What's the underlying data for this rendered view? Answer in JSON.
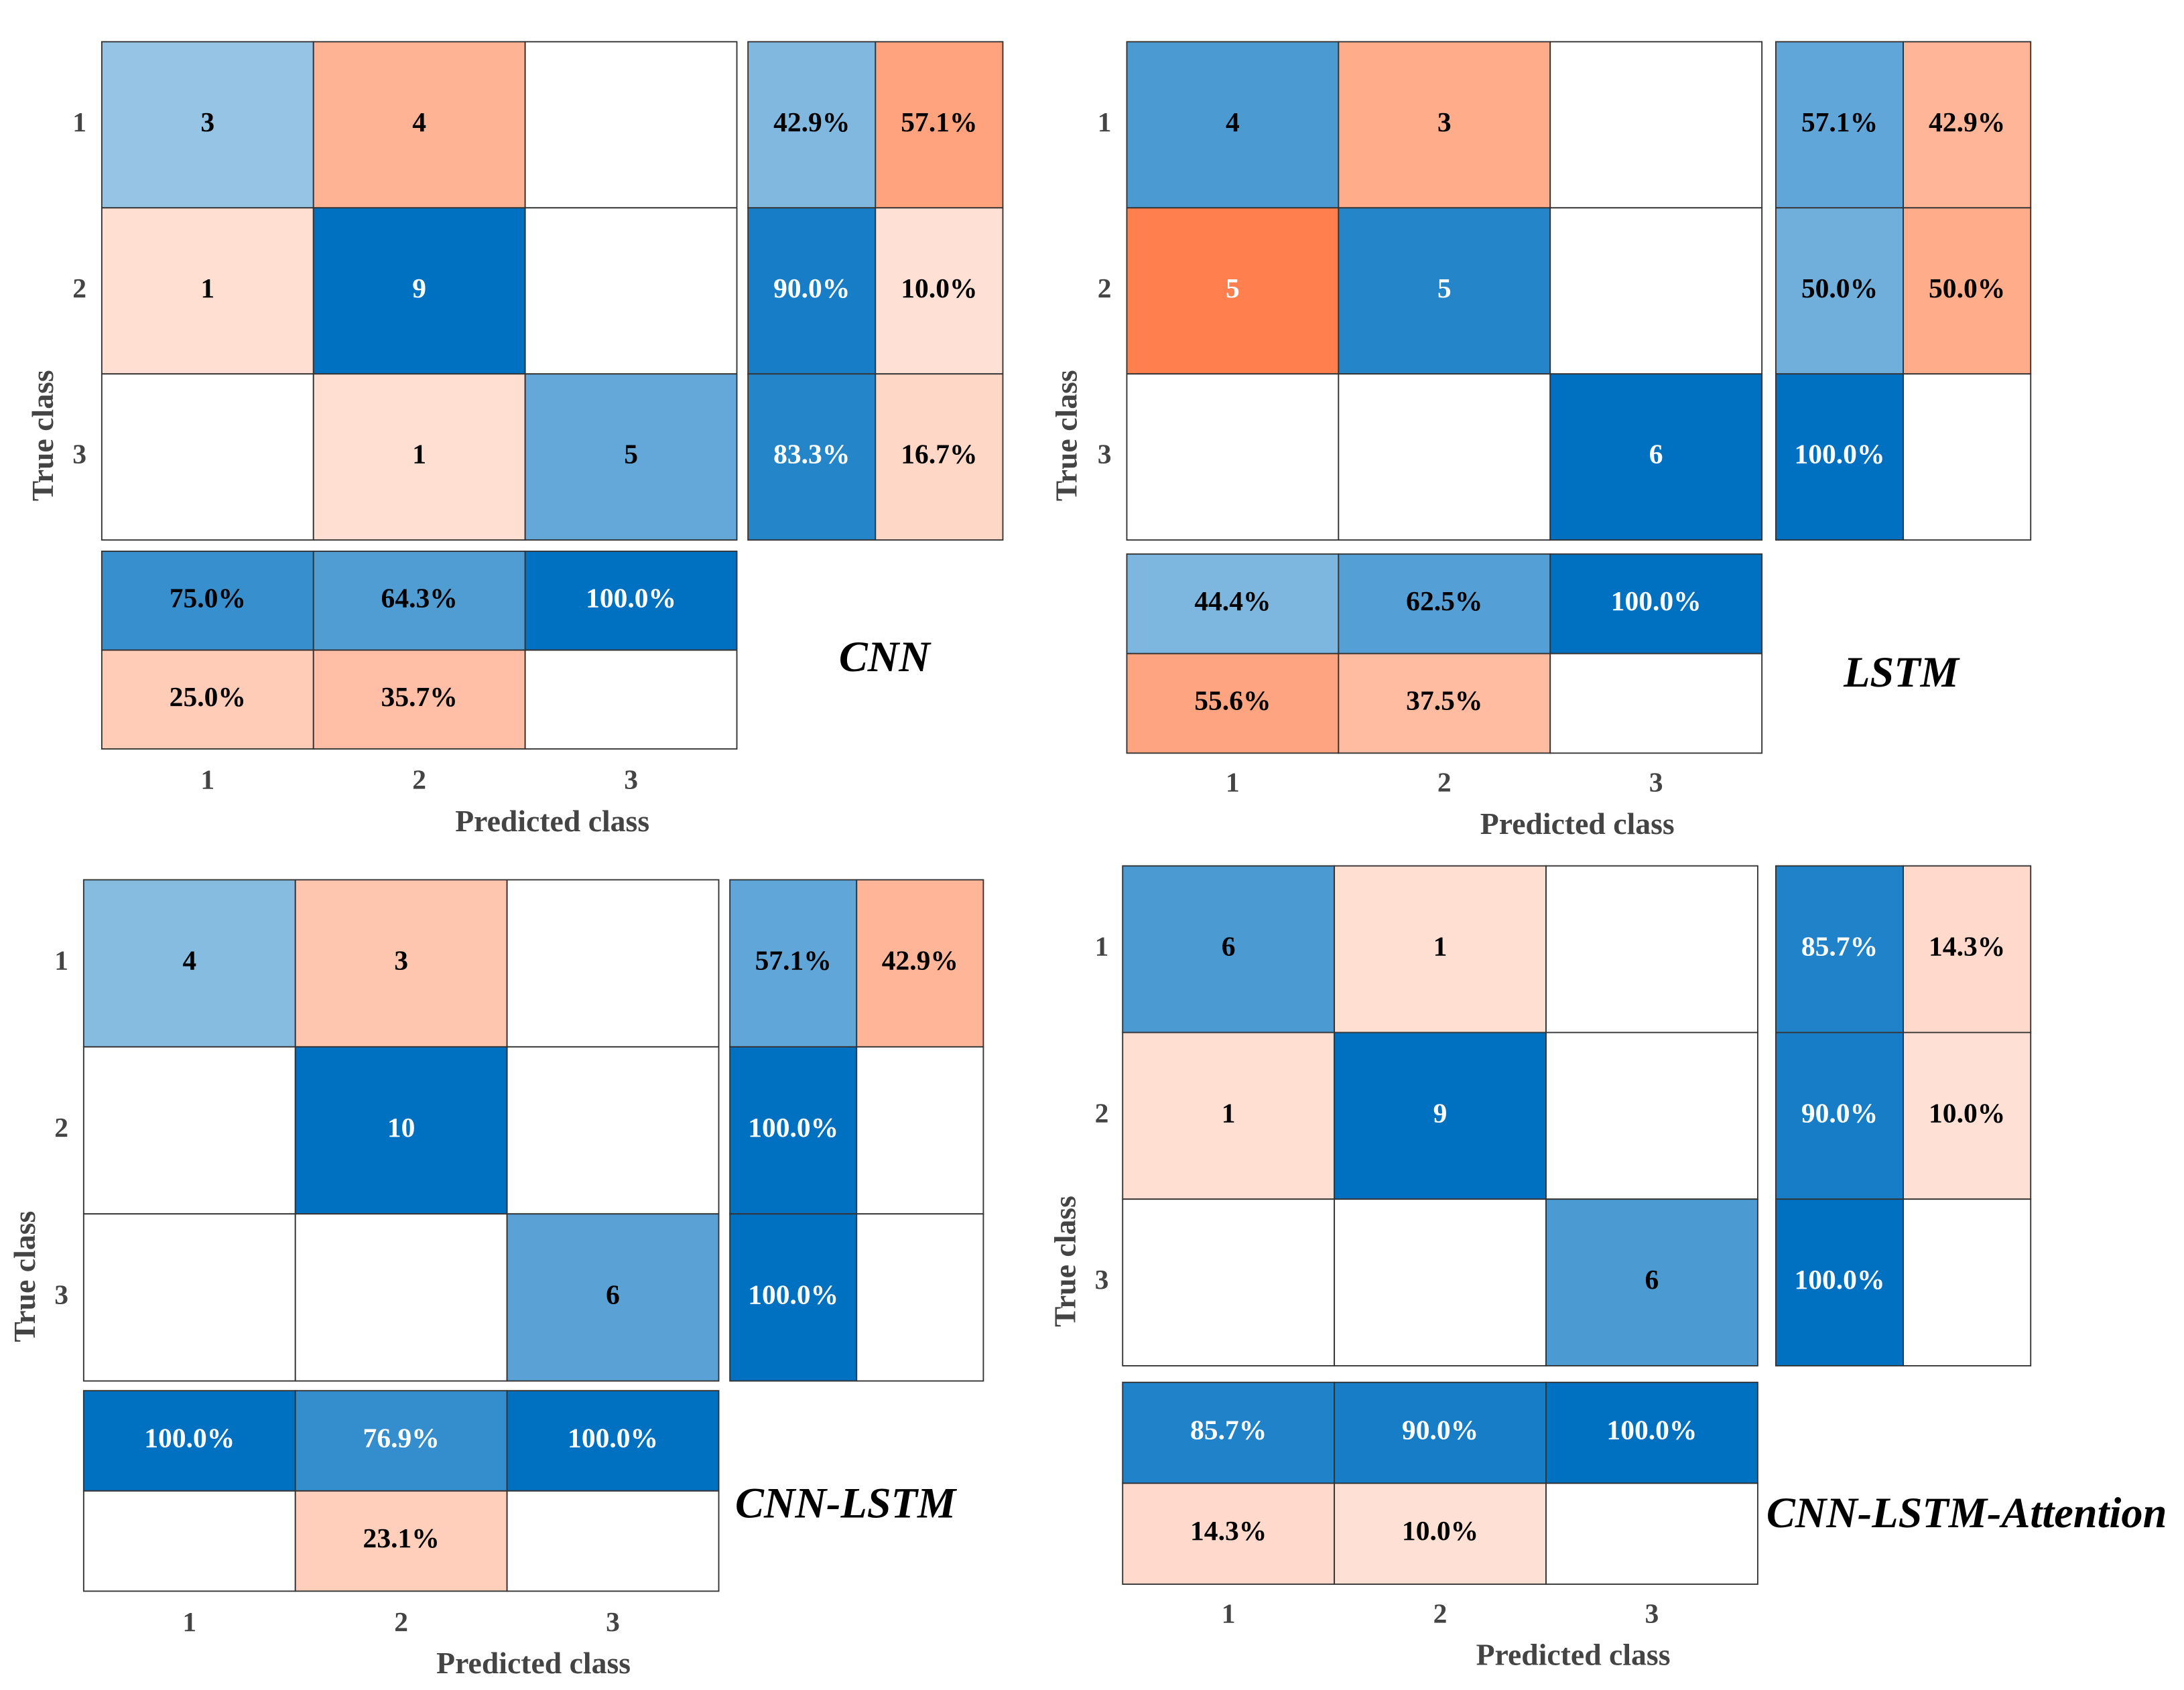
{
  "chart_data": [
    {
      "type": "confusion_matrix",
      "title": "CNN",
      "xlabel": "Predicted class",
      "ylabel": "True class",
      "classes": [
        "1",
        "2",
        "3"
      ],
      "matrix": [
        [
          3,
          4,
          null
        ],
        [
          1,
          9,
          null
        ],
        [
          null,
          1,
          5
        ]
      ],
      "row_summary": {
        "values": [
          [
            42.9,
            57.1
          ],
          [
            90.0,
            10.0
          ],
          [
            83.3,
            16.7
          ]
        ],
        "value_labels": [
          [
            "42.9%",
            "57.1%"
          ],
          [
            "90.0%",
            "10.0%"
          ],
          [
            "83.3%",
            "16.7%"
          ]
        ]
      },
      "column_summary": {
        "values": [
          [
            75.0,
            64.3,
            100.0
          ],
          [
            25.0,
            35.7,
            null
          ]
        ],
        "value_labels": [
          [
            "75.0%",
            "64.3%",
            "100.0%"
          ],
          [
            "25.0%",
            "35.7%",
            null
          ]
        ]
      },
      "correct_color": "#0070c0",
      "incorrect_color": "#ff6a2f"
    },
    {
      "type": "confusion_matrix",
      "title": "LSTM",
      "xlabel": "Predicted class",
      "ylabel": "True class",
      "classes": [
        "1",
        "2",
        "3"
      ],
      "matrix": [
        [
          4,
          3,
          null
        ],
        [
          5,
          5,
          null
        ],
        [
          null,
          null,
          6
        ]
      ],
      "row_summary": {
        "values": [
          [
            57.1,
            42.9
          ],
          [
            50.0,
            50.0
          ],
          [
            100.0,
            null
          ]
        ],
        "value_labels": [
          [
            "57.1%",
            "42.9%"
          ],
          [
            "50.0%",
            "50.0%"
          ],
          [
            "100.0%",
            null
          ]
        ]
      },
      "column_summary": {
        "values": [
          [
            44.4,
            62.5,
            100.0
          ],
          [
            55.6,
            37.5,
            null
          ]
        ],
        "value_labels": [
          [
            "44.4%",
            "62.5%",
            "100.0%"
          ],
          [
            "55.6%",
            "37.5%",
            null
          ]
        ]
      },
      "correct_color": "#0070c0",
      "incorrect_color": "#ff6a2f"
    },
    {
      "type": "confusion_matrix",
      "title": "CNN-LSTM",
      "xlabel": "Predicted class",
      "ylabel": "True class",
      "classes": [
        "1",
        "2",
        "3"
      ],
      "matrix": [
        [
          4,
          3,
          null
        ],
        [
          null,
          10,
          null
        ],
        [
          null,
          null,
          6
        ]
      ],
      "row_summary": {
        "values": [
          [
            57.1,
            42.9
          ],
          [
            100.0,
            null
          ],
          [
            100.0,
            null
          ]
        ],
        "value_labels": [
          [
            "57.1%",
            "42.9%"
          ],
          [
            "100.0%",
            null
          ],
          [
            "100.0%",
            null
          ]
        ]
      },
      "column_summary": {
        "values": [
          [
            100.0,
            76.9,
            100.0
          ],
          [
            null,
            23.1,
            null
          ]
        ],
        "value_labels": [
          [
            "100.0%",
            "76.9%",
            "100.0%"
          ],
          [
            null,
            "23.1%",
            null
          ]
        ]
      },
      "correct_color": "#0070c0",
      "incorrect_color": "#ff6a2f"
    },
    {
      "type": "confusion_matrix",
      "title": "CNN-LSTM-Attention",
      "xlabel": "Predicted class",
      "ylabel": "True class",
      "classes": [
        "1",
        "2",
        "3"
      ],
      "matrix": [
        [
          6,
          1,
          null
        ],
        [
          1,
          9,
          null
        ],
        [
          null,
          null,
          6
        ]
      ],
      "row_summary": {
        "values": [
          [
            85.7,
            14.3
          ],
          [
            90.0,
            10.0
          ],
          [
            100.0,
            null
          ]
        ],
        "value_labels": [
          [
            "85.7%",
            "14.3%"
          ],
          [
            "90.0%",
            "10.0%"
          ],
          [
            "100.0%",
            null
          ]
        ]
      },
      "column_summary": {
        "values": [
          [
            85.7,
            90.0,
            100.0
          ],
          [
            14.3,
            10.0,
            null
          ]
        ],
        "value_labels": [
          [
            "85.7%",
            "90.0%",
            "100.0%"
          ],
          [
            "14.3%",
            "10.0%",
            null
          ]
        ]
      },
      "correct_color": "#0070c0",
      "incorrect_color": "#ff6a2f"
    }
  ]
}
